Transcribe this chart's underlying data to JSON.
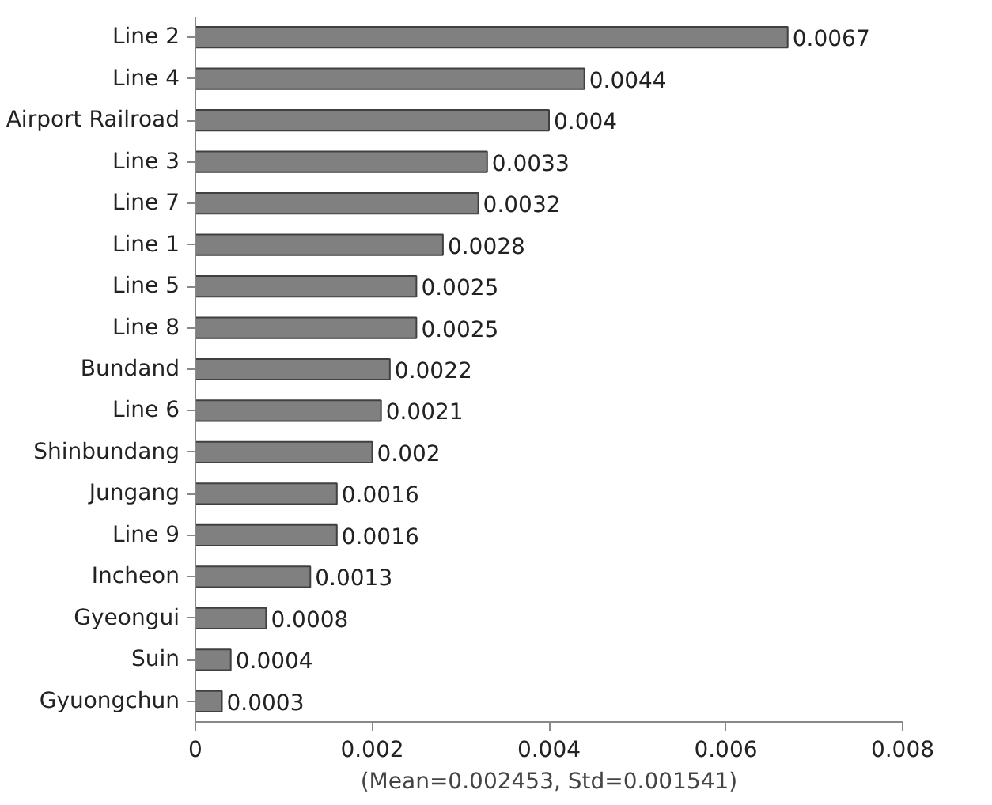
{
  "chart_data": {
    "type": "bar",
    "orientation": "horizontal",
    "xlabel": "(Mean=0.002453, Std=0.001541)",
    "categories": [
      "Line 2",
      "Line 4",
      "Airport Railroad",
      "Line 3",
      "Line 7",
      "Line 1",
      "Line 5",
      "Line 8",
      "Bundand",
      "Line 6",
      "Shinbundang",
      "Jungang",
      "Line 9",
      "Incheon",
      "Gyeongui",
      "Suin",
      "Gyuongchun"
    ],
    "values": [
      0.0067,
      0.0044,
      0.004,
      0.0033,
      0.0032,
      0.0028,
      0.0025,
      0.0025,
      0.0022,
      0.0021,
      0.002,
      0.0016,
      0.0016,
      0.0013,
      0.0008,
      0.0004,
      0.0003
    ],
    "color": "#808080",
    "xlim": [
      0,
      0.008
    ],
    "xticks": [
      0,
      0.002,
      0.004,
      0.006,
      0.008
    ],
    "data_labels": true,
    "grid": false
  }
}
